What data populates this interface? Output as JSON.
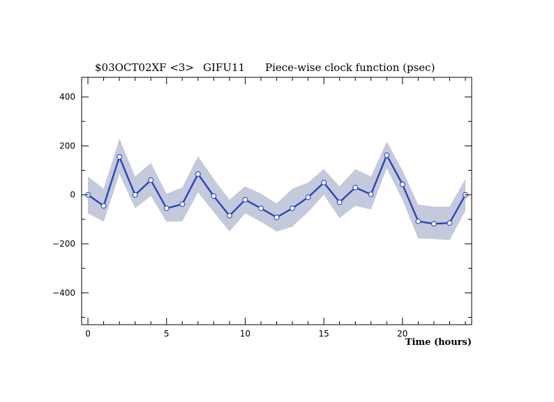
{
  "chart_data": {
    "type": "line",
    "title_parts": [
      "$03OCT02XF <3>",
      "GIFU11",
      "Piece-wise clock function (psec)"
    ],
    "xlabel": "Time (hours)",
    "ylabel": "",
    "xlim": [
      -0.4,
      24.4
    ],
    "ylim": [
      -530,
      480
    ],
    "x_ticks": [
      0,
      5,
      10,
      15,
      20
    ],
    "y_ticks": [
      -400,
      -200,
      0,
      200,
      400
    ],
    "grid": false,
    "colors": {
      "line": "#2944b8",
      "band": "#c5c9dc",
      "marker_fill": "#ffffff"
    },
    "series": [
      {
        "x": [
          0,
          1,
          2,
          3,
          4,
          5,
          6,
          7,
          8,
          9,
          10,
          11,
          12,
          13,
          14,
          15,
          16,
          17,
          18,
          19,
          20,
          21,
          22,
          23,
          24
        ],
        "y": [
          0,
          -45,
          155,
          0,
          60,
          -55,
          -38,
          85,
          -5,
          -85,
          -20,
          -55,
          -92,
          -55,
          -10,
          50,
          -30,
          30,
          2,
          162,
          43,
          -108,
          -118,
          -115,
          0
        ],
        "upper": [
          75,
          25,
          230,
          75,
          130,
          5,
          30,
          158,
          65,
          -20,
          35,
          5,
          -35,
          25,
          50,
          105,
          35,
          105,
          75,
          218,
          100,
          -40,
          -48,
          -48,
          65
        ],
        "lower": [
          -75,
          -110,
          85,
          -55,
          -5,
          -110,
          -108,
          10,
          -70,
          -150,
          -75,
          -110,
          -150,
          -130,
          -70,
          0,
          -95,
          -45,
          -60,
          108,
          -20,
          -178,
          -180,
          -185,
          -65
        ]
      }
    ]
  }
}
